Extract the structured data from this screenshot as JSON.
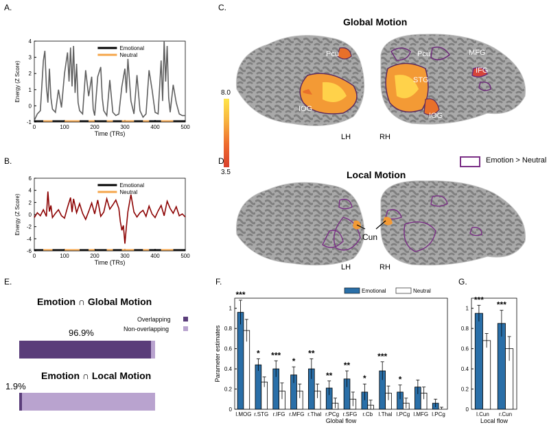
{
  "panels": {
    "A": {
      "label": "A.",
      "ylabel": "Energy (Z Score)",
      "xlabel": "Time (TRs)",
      "yticks": [
        "-1",
        "0",
        "1",
        "2",
        "3",
        "4"
      ],
      "xticks": [
        "0",
        "100",
        "200",
        "300",
        "400",
        "500"
      ],
      "legend": [
        "Emotional",
        "Neutral"
      ],
      "colors": {
        "line": "#5f5f5f",
        "emotional": "#000000",
        "neutral": "#f5a54a"
      }
    },
    "B": {
      "label": "B.",
      "ylabel": "Energy (Z Score)",
      "xlabel": "Time (TRs)",
      "yticks": [
        "-6",
        "-4",
        "-2",
        "0",
        "2",
        "4",
        "6"
      ],
      "xticks": [
        "0",
        "100",
        "200",
        "300",
        "400",
        "500"
      ],
      "legend": [
        "Emotional",
        "Neutral"
      ],
      "colors": {
        "line": "#8b0000",
        "emotional": "#000000",
        "neutral": "#f5a54a"
      }
    },
    "C": {
      "label": "C.",
      "title": "Global Motion",
      "regions": [
        "Pcu",
        "IOG",
        "Pcu",
        "MFG",
        "IFG",
        "STG",
        "IOG"
      ],
      "colorbar": {
        "max": "8.0",
        "min": "3.5"
      },
      "hemis": [
        "LH",
        "RH"
      ]
    },
    "D": {
      "label": "D.",
      "title": "Local Motion",
      "region": "Cun",
      "hemis": [
        "LH",
        "RH"
      ],
      "legend": "Emotion > Neutral"
    },
    "E": {
      "label": "E.",
      "title1": "Emotion ∩ Global Motion",
      "pct1": "96.9%",
      "title2": "Emotion ∩ Local Motion",
      "pct2": "1.9%",
      "legend": [
        "Overlapping",
        "Non-overlapping"
      ],
      "colors": {
        "overlap": "#5a3d7a",
        "nonoverlap": "#b9a3cf"
      }
    },
    "F": {
      "label": "F."
    },
    "G": {
      "label": "G."
    }
  },
  "chart_data": [
    {
      "type": "line",
      "panel": "A",
      "title": "",
      "xlabel": "Time (TRs)",
      "ylabel": "Energy (Z Score)",
      "xlim": [
        0,
        500
      ],
      "ylim": [
        -1,
        4
      ],
      "series": [
        {
          "name": "Energy",
          "x": [
            0,
            10,
            20,
            30,
            35,
            40,
            45,
            50,
            55,
            60,
            70,
            80,
            90,
            100,
            110,
            115,
            120,
            125,
            130,
            135,
            140,
            145,
            150,
            160,
            170,
            180,
            190,
            195,
            200,
            210,
            220,
            225,
            230,
            240,
            250,
            260,
            270,
            280,
            290,
            300,
            305,
            310,
            320,
            330,
            340,
            350,
            360,
            370,
            380,
            390,
            400,
            410,
            420,
            425,
            430,
            435,
            440,
            445,
            450,
            460,
            470,
            480,
            490,
            500
          ],
          "values": [
            -0.9,
            -0.5,
            -0.3,
            2.8,
            3.4,
            1.2,
            0.2,
            2.3,
            0.5,
            -0.2,
            -0.4,
            1.0,
            -0.1,
            2.0,
            3.3,
            1.5,
            3.6,
            1.2,
            3.7,
            0.8,
            2.6,
            0.2,
            -0.3,
            -0.5,
            2.2,
            0.6,
            1.8,
            -0.2,
            -0.6,
            1.8,
            2.4,
            0.5,
            -0.3,
            -0.6,
            1.6,
            -0.4,
            -0.6,
            -0.5,
            1.2,
            2.3,
            0.8,
            2.9,
            0.3,
            -0.5,
            1.9,
            -0.3,
            -0.7,
            -0.5,
            2.2,
            1.0,
            -0.4,
            -0.5,
            2.8,
            0.3,
            4.0,
            1.5,
            3.7,
            0.5,
            -0.4,
            1.3,
            0.2,
            -0.5,
            -0.6,
            -0.6
          ]
        }
      ],
      "bars": {
        "emotional": [
          [
            0,
            30
          ],
          [
            60,
            100
          ],
          [
            150,
            180
          ],
          [
            200,
            240
          ],
          [
            260,
            290
          ],
          [
            330,
            360
          ],
          [
            380,
            420
          ],
          [
            460,
            500
          ]
        ],
        "neutral": [
          [
            30,
            60
          ],
          [
            100,
            150
          ],
          [
            180,
            200
          ],
          [
            240,
            260
          ],
          [
            290,
            330
          ],
          [
            360,
            380
          ],
          [
            420,
            460
          ]
        ]
      },
      "legend": [
        "Emotional",
        "Neutral"
      ]
    },
    {
      "type": "line",
      "panel": "B",
      "title": "",
      "xlabel": "Time (TRs)",
      "ylabel": "Energy (Z Score)",
      "xlim": [
        0,
        500
      ],
      "ylim": [
        -6,
        6
      ],
      "series": [
        {
          "name": "Energy",
          "x": [
            0,
            10,
            20,
            30,
            40,
            45,
            50,
            55,
            60,
            70,
            80,
            90,
            100,
            110,
            120,
            125,
            130,
            140,
            150,
            160,
            170,
            180,
            190,
            200,
            210,
            220,
            230,
            240,
            250,
            260,
            270,
            280,
            285,
            290,
            295,
            300,
            305,
            310,
            320,
            330,
            340,
            350,
            360,
            370,
            380,
            390,
            400,
            410,
            420,
            430,
            440,
            450,
            460,
            470,
            480,
            490,
            500
          ],
          "values": [
            -0.5,
            0.3,
            -0.2,
            0.8,
            -0.3,
            3.8,
            0.5,
            1.5,
            -0.5,
            0.2,
            0.8,
            -0.2,
            -0.6,
            1.2,
            2.8,
            0.4,
            2.6,
            0.3,
            1.8,
            0.2,
            -0.8,
            0.5,
            1.9,
            0.1,
            2.4,
            -0.3,
            0.4,
            2.6,
            0.9,
            1.6,
            2.4,
            1.0,
            -1.2,
            -2.6,
            -1.8,
            -4.8,
            -2.0,
            0.5,
            3.3,
            0.4,
            -0.4,
            0.3,
            0.7,
            -0.3,
            1.4,
            0.1,
            -0.5,
            0.6,
            1.5,
            -0.2,
            2.2,
            1.0,
            0.2,
            1.3,
            -0.2,
            0.1,
            -0.4
          ]
        }
      ],
      "bars": {
        "emotional": [
          [
            0,
            30
          ],
          [
            60,
            100
          ],
          [
            150,
            180
          ],
          [
            200,
            240
          ],
          [
            260,
            290
          ],
          [
            330,
            360
          ],
          [
            380,
            420
          ],
          [
            460,
            500
          ]
        ],
        "neutral": [
          [
            30,
            60
          ],
          [
            100,
            150
          ],
          [
            180,
            200
          ],
          [
            240,
            260
          ],
          [
            290,
            330
          ],
          [
            360,
            380
          ],
          [
            420,
            460
          ]
        ]
      },
      "legend": [
        "Emotional",
        "Neutral"
      ]
    },
    {
      "type": "bar",
      "panel": "F",
      "title": "",
      "xlabel": "Global flow",
      "ylabel": "Parameter estimates",
      "ylim": [
        0,
        1.1
      ],
      "yticks": [
        "0",
        "0.2",
        "0.4",
        "0.6",
        "0.8",
        "1"
      ],
      "categories": [
        "l.MOG",
        "r.STG",
        "r.IFG",
        "r.MFG",
        "r.Thal",
        "r.PCg",
        "r.SFG",
        "r.Cb",
        "l.Thal",
        "l.PCg",
        "l.MFG",
        "l.PCg"
      ],
      "series": [
        {
          "name": "Emotional",
          "values": [
            0.96,
            0.44,
            0.4,
            0.34,
            0.4,
            0.21,
            0.3,
            0.17,
            0.38,
            0.17,
            0.22,
            0.06
          ],
          "errors": [
            0.12,
            0.06,
            0.08,
            0.08,
            0.1,
            0.07,
            0.08,
            0.08,
            0.09,
            0.07,
            0.07,
            0.04
          ]
        },
        {
          "name": "Neutral",
          "values": [
            0.78,
            0.27,
            0.18,
            0.18,
            0.18,
            0.06,
            0.1,
            0.04,
            0.16,
            0.06,
            0.16,
            0.0
          ],
          "errors": [
            0.11,
            0.05,
            0.08,
            0.07,
            0.07,
            0.05,
            0.07,
            0.05,
            0.07,
            0.05,
            0.06,
            0.02
          ]
        }
      ],
      "annotations": [
        "***",
        "*",
        "***",
        "*",
        "**",
        "**",
        "**",
        "*",
        "***",
        "*",
        "",
        ""
      ],
      "legend": [
        "Emotional",
        "Neutral"
      ],
      "colors": {
        "emotional": "#2a6fa8",
        "neutral": "#ffffff"
      }
    },
    {
      "type": "bar",
      "panel": "G",
      "title": "",
      "xlabel": "Local flow",
      "ylabel": "",
      "ylim": [
        0,
        1.1
      ],
      "yticks": [
        "0",
        "0.2",
        "0.4",
        "0.6",
        "0.8",
        "1"
      ],
      "categories": [
        "l.Cun",
        "r.Cun"
      ],
      "series": [
        {
          "name": "Emotional",
          "values": [
            0.95,
            0.85
          ],
          "errors": [
            0.08,
            0.13
          ]
        },
        {
          "name": "Neutral",
          "values": [
            0.68,
            0.6
          ],
          "errors": [
            0.07,
            0.12
          ]
        }
      ],
      "annotations": [
        "***",
        "***"
      ]
    }
  ]
}
